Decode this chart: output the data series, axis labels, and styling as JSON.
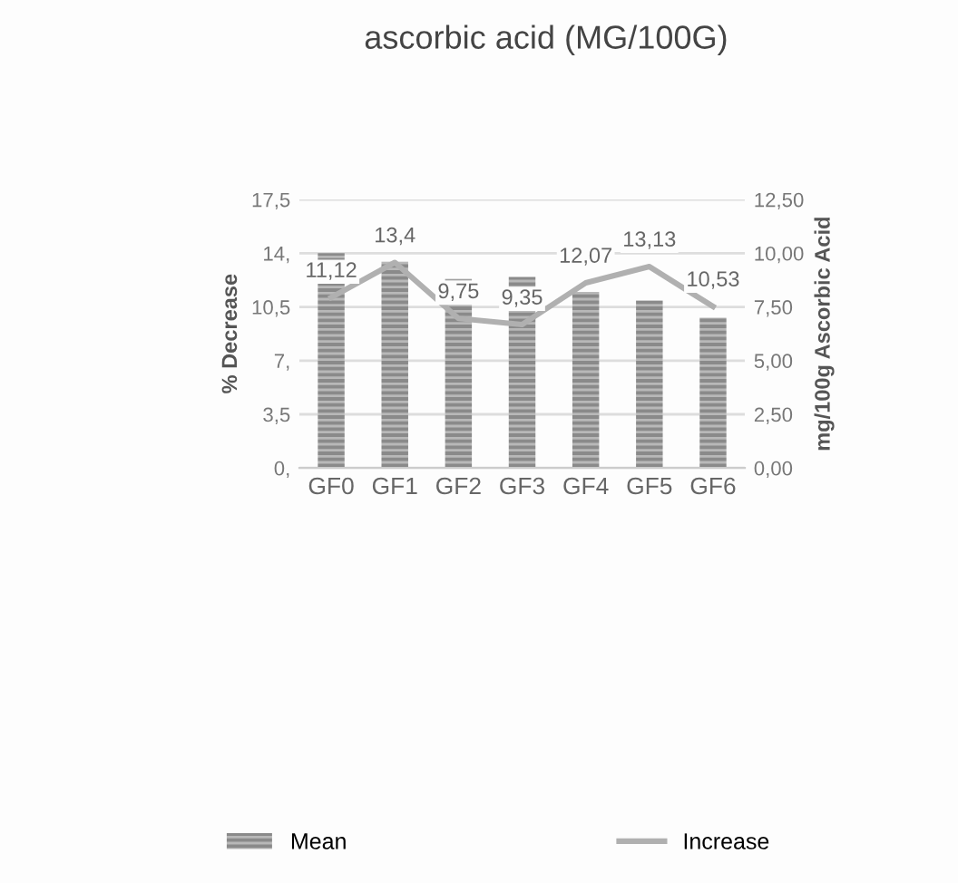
{
  "chart_data": {
    "type": "bar",
    "title": "ascorbic acid (MG/100G)",
    "categories": [
      "GF0",
      "GF1",
      "GF2",
      "GF3",
      "GF4",
      "GF5",
      "GF6"
    ],
    "ylabel": "% Decrease",
    "y2label": "mg/100g Ascorbic Acid",
    "series": [
      {
        "name": "Mean",
        "axis": "y2",
        "color": "#8a8a8a",
        "values": [
          10.0,
          9.6,
          8.8,
          8.9,
          8.2,
          7.8,
          7.0
        ]
      },
      {
        "name": "Increase",
        "type": "line",
        "axis": "y",
        "color": "#b0b0b0",
        "values": [
          11.12,
          13.4,
          9.75,
          9.35,
          12.07,
          13.13,
          10.53
        ],
        "value_labels": [
          "11,12",
          "13,4",
          "9,75",
          "9,35",
          "12,07",
          "13,13",
          "10,53"
        ]
      }
    ],
    "ylim": [
      0,
      17.5
    ],
    "yticks": [
      {
        "value": 0,
        "label": "0,"
      },
      {
        "value": 3.5,
        "label": "3,5"
      },
      {
        "value": 7,
        "label": "7,"
      },
      {
        "value": 10.5,
        "label": "10,5"
      },
      {
        "value": 14,
        "label": "14,"
      },
      {
        "value": 17.5,
        "label": "17,5"
      }
    ],
    "y2lim": [
      0,
      12.5
    ],
    "y2ticks": [
      {
        "value": 0,
        "label": "0,00"
      },
      {
        "value": 2.5,
        "label": "2,50"
      },
      {
        "value": 5,
        "label": "5,00"
      },
      {
        "value": 7.5,
        "label": "7,50"
      },
      {
        "value": 10,
        "label": "10,00"
      },
      {
        "value": 12.5,
        "label": "12,50"
      }
    ],
    "grid": "y",
    "legend": "bottom",
    "marker": "none",
    "line_style": "solid"
  }
}
